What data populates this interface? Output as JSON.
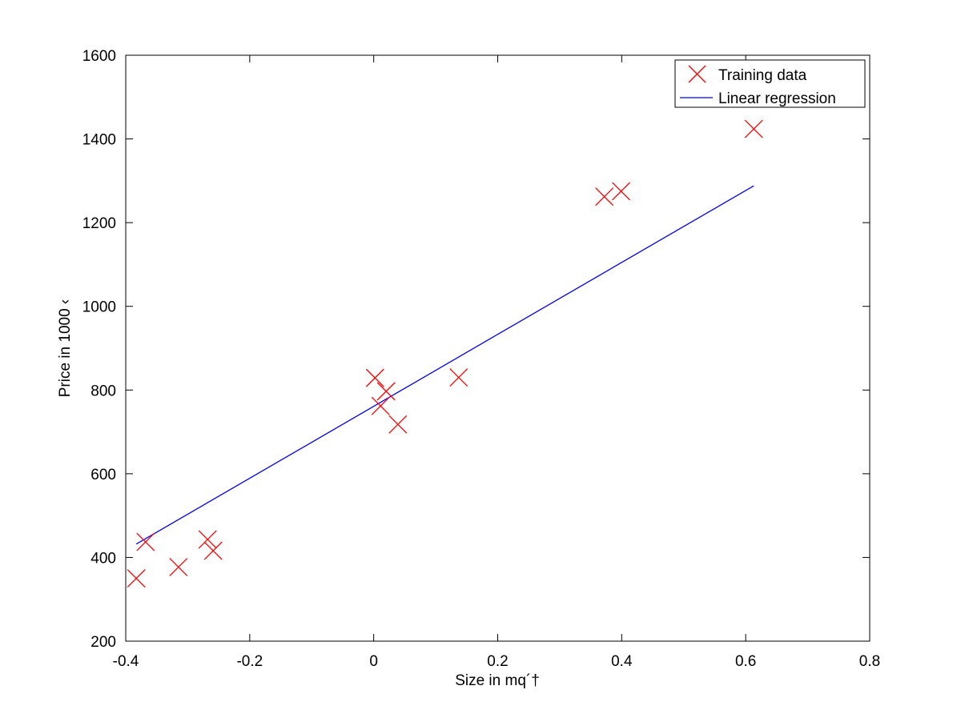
{
  "chart_data": {
    "type": "scatter",
    "title": "",
    "xlabel": "Size in mq´†",
    "ylabel": "Price in 1000 ‹",
    "xlim": [
      -0.4,
      0.8
    ],
    "ylim": [
      200,
      1600
    ],
    "xticks": [
      -0.4,
      -0.2,
      0,
      0.2,
      0.4,
      0.6,
      0.8
    ],
    "yticks": [
      200,
      400,
      600,
      800,
      1000,
      1200,
      1400,
      1600
    ],
    "xtick_labels": [
      "-0.4",
      "-0.2",
      "0",
      "0.2",
      "0.4",
      "0.6",
      "0.8"
    ],
    "ytick_labels": [
      "200",
      "400",
      "600",
      "800",
      "1000",
      "1200",
      "1400",
      "1600"
    ],
    "grid": false,
    "legend_position": "top-right",
    "series": [
      {
        "name": "Training data",
        "kind": "scatter",
        "marker": "x",
        "color": "#ff0000",
        "points": [
          [
            -0.383,
            350
          ],
          [
            -0.368,
            437
          ],
          [
            -0.315,
            377
          ],
          [
            -0.268,
            443
          ],
          [
            -0.259,
            416
          ],
          [
            0.002,
            829
          ],
          [
            0.011,
            762
          ],
          [
            0.02,
            797
          ],
          [
            0.039,
            718
          ],
          [
            0.137,
            830
          ],
          [
            0.372,
            1262
          ],
          [
            0.399,
            1275
          ],
          [
            0.613,
            1424
          ]
        ]
      },
      {
        "name": "Linear regression",
        "kind": "line",
        "color": "#0000ff",
        "points": [
          [
            -0.383,
            432
          ],
          [
            0.613,
            1288
          ]
        ]
      }
    ]
  }
}
